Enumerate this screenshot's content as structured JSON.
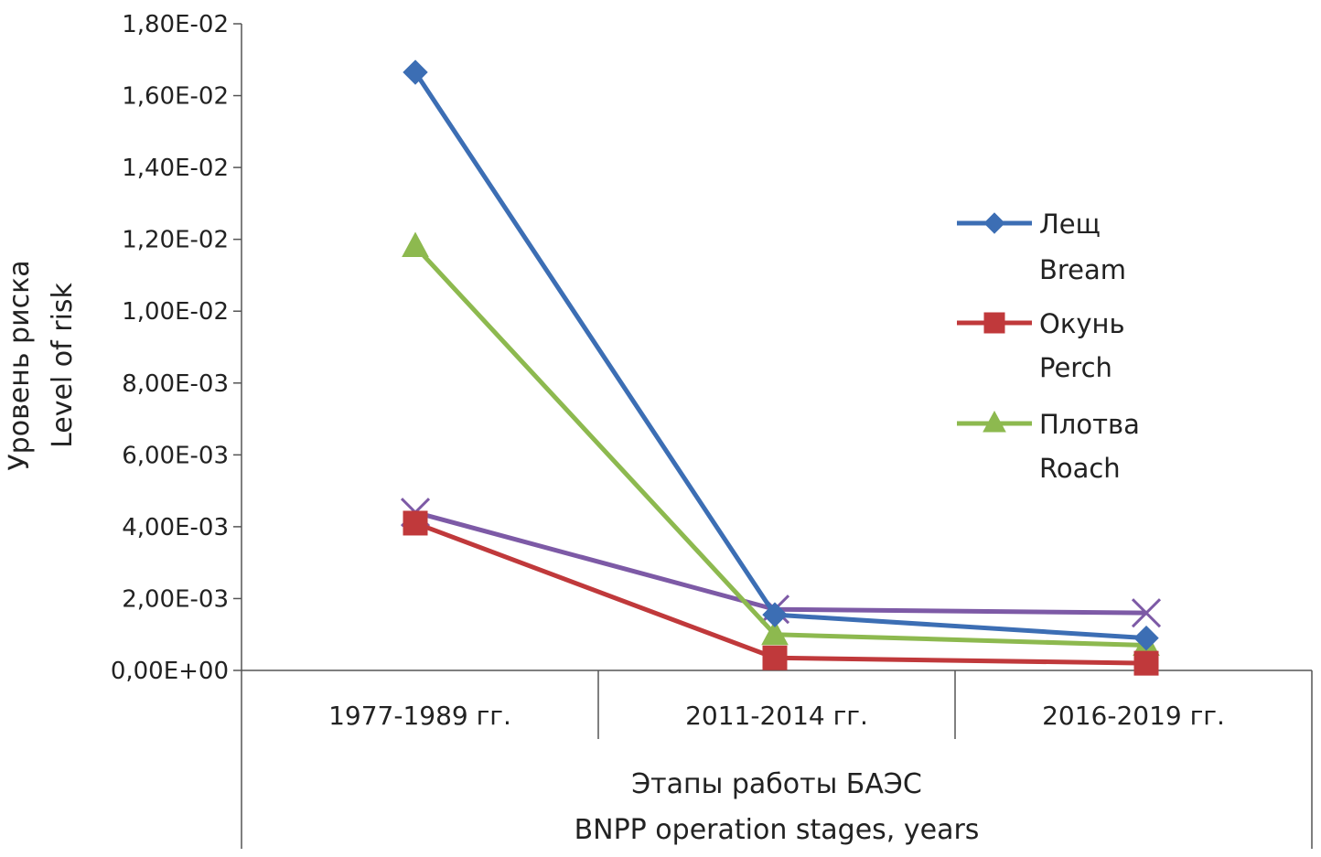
{
  "chart_data": {
    "type": "line",
    "title": "",
    "categories": [
      "1977-1989   гг.",
      "2011-2014   гг.",
      "2016-2019   гг."
    ],
    "xlabel": [
      "Этапы работы БАЭС",
      "BNPP operation stages, years"
    ],
    "ylabel": [
      "Уровень риска",
      "Level of risk"
    ],
    "ylim": [
      0,
      0.018
    ],
    "yticks": [
      0,
      0.002,
      0.004,
      0.006,
      0.008,
      0.01,
      0.012,
      0.014,
      0.016,
      0.018
    ],
    "ytick_labels": [
      "0,00E+00",
      "2,00E-03",
      "4,00E-03",
      "6,00E-03",
      "8,00E-03",
      "1,00E-02",
      "1,20E-02",
      "1,40E-02",
      "1,60E-02",
      "1,80E-02"
    ],
    "grid": false,
    "legend_position": "right",
    "series": [
      {
        "name": [
          "Лещ",
          "Bream"
        ],
        "marker": "diamond",
        "color": "#3c6eb4",
        "values": [
          0.01665,
          0.00155,
          0.0009
        ]
      },
      {
        "name": [
          "Окунь",
          "Perch"
        ],
        "marker": "square",
        "color": "#c0393b",
        "values": [
          0.0041,
          0.00035,
          0.0002
        ]
      },
      {
        "name": [
          "Плотва",
          "Roach"
        ],
        "marker": "triangle",
        "color": "#8db94f",
        "values": [
          0.0118,
          0.001,
          0.0007
        ]
      },
      {
        "marker": "x",
        "color": "#7d5aa6",
        "values": [
          0.0044,
          0.0017,
          0.0016
        ]
      }
    ]
  }
}
